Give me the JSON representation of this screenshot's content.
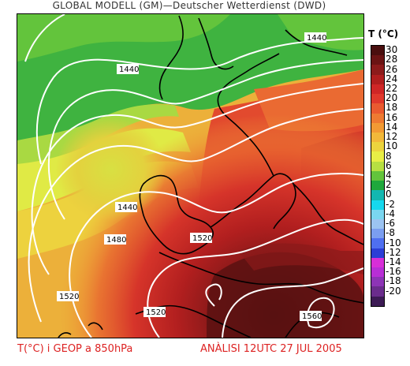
{
  "title": "GLOBAL MODELL (GM)—Deutscher Wetterdienst (DWD)",
  "legend": {
    "title": "T (°C)",
    "levels": [
      {
        "label": "30",
        "color": "#4a0f0f"
      },
      {
        "label": "28",
        "color": "#6b1414"
      },
      {
        "label": "26",
        "color": "#8c1b1b"
      },
      {
        "label": "24",
        "color": "#b01e1e"
      },
      {
        "label": "22",
        "color": "#cf2626"
      },
      {
        "label": "20",
        "color": "#e0382c"
      },
      {
        "label": "18",
        "color": "#ea5a30"
      },
      {
        "label": "16",
        "color": "#ee7a32"
      },
      {
        "label": "14",
        "color": "#f29a34"
      },
      {
        "label": "12",
        "color": "#f2b83a"
      },
      {
        "label": "10",
        "color": "#ecd43e"
      },
      {
        "label": "8",
        "color": "#e8ee46"
      },
      {
        "label": "6",
        "color": "#b7e042"
      },
      {
        "label": "4",
        "color": "#63c43c"
      },
      {
        "label": "2",
        "color": "#1fa83c"
      },
      {
        "label": "0",
        "color": "#13b7b0"
      },
      {
        "label": "-2",
        "color": "#16d8ee"
      },
      {
        "label": "-4",
        "color": "#7ad6f0"
      },
      {
        "label": "-6",
        "color": "#9cc4f2"
      },
      {
        "label": "-8",
        "color": "#7b9ef0"
      },
      {
        "label": "-10",
        "color": "#4f6ff0"
      },
      {
        "label": "-12",
        "color": "#2c3ed6"
      },
      {
        "label": "-14",
        "color": "#d82ed8"
      },
      {
        "label": "-16",
        "color": "#b82ed6"
      },
      {
        "label": "-18",
        "color": "#8d34b6"
      },
      {
        "label": "-20",
        "color": "#6a2c8c"
      },
      {
        "label": "",
        "color": "#3c1a54"
      }
    ]
  },
  "contours": {
    "labels": [
      "1440",
      "1440",
      "1440",
      "1480",
      "1520",
      "1520",
      "1520",
      "1560"
    ]
  },
  "footer": {
    "left": "T(°C) i GEOP a 850hPa",
    "right": "ANÀLISI 12UTC 27 JUL 2005"
  }
}
